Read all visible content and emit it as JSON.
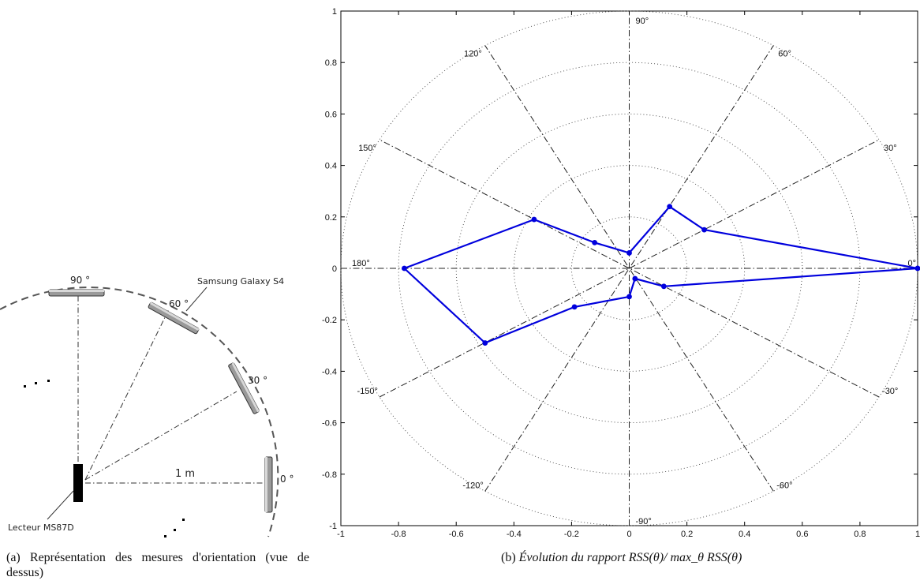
{
  "figure_a": {
    "caption_prefix": "(a)",
    "caption_text": "Représentation des mesures d'orientation (vue de dessus)",
    "labels": {
      "deg90": "90 °",
      "deg60": "60 °",
      "deg30": "30 °",
      "deg0": "0 °",
      "phone": "Samsung Galaxy S4",
      "reader": "Lecteur MS87D",
      "distance": "1 m"
    }
  },
  "figure_b": {
    "caption_prefix": "(b)",
    "caption_text": "Évolution du rapport RSS(θ)/ max_θ RSS(θ)",
    "line_color": "#0000dd"
  },
  "chart_data": {
    "type": "line",
    "projection": "polar",
    "x_ticks": [
      "-1",
      "-0.8",
      "-0.6",
      "-0.4",
      "-0.2",
      "0",
      "0.2",
      "0.4",
      "0.6",
      "0.8",
      "1"
    ],
    "y_ticks": [
      "1",
      "0.8",
      "0.6",
      "0.4",
      "0.2",
      "0",
      "-0.2",
      "-0.4",
      "-0.6",
      "-0.8",
      "-1"
    ],
    "xlim": [
      -1,
      1
    ],
    "ylim": [
      -1,
      1
    ],
    "angle_labels": [
      "0°",
      "30°",
      "60°",
      "90°",
      "120°",
      "150°",
      "180°",
      "-150°",
      "-120°",
      "-90°",
      "-60°",
      "-30°"
    ],
    "radial_rings": [
      0.2,
      0.4,
      0.6,
      0.8,
      1.0
    ],
    "series": [
      {
        "points": [
          {
            "x": 1.0,
            "y": 0.0
          },
          {
            "x": 0.26,
            "y": 0.15
          },
          {
            "x": 0.14,
            "y": 0.24
          },
          {
            "x": 0.0,
            "y": 0.06
          },
          {
            "x": -0.12,
            "y": 0.1
          },
          {
            "x": -0.33,
            "y": 0.19
          },
          {
            "x": -0.78,
            "y": 0.0
          },
          {
            "x": -0.5,
            "y": -0.29
          },
          {
            "x": -0.19,
            "y": -0.15
          },
          {
            "x": 0.0,
            "y": -0.11
          },
          {
            "x": 0.02,
            "y": -0.04
          },
          {
            "x": 0.12,
            "y": -0.07
          },
          {
            "x": 1.0,
            "y": 0.0
          }
        ]
      }
    ]
  }
}
